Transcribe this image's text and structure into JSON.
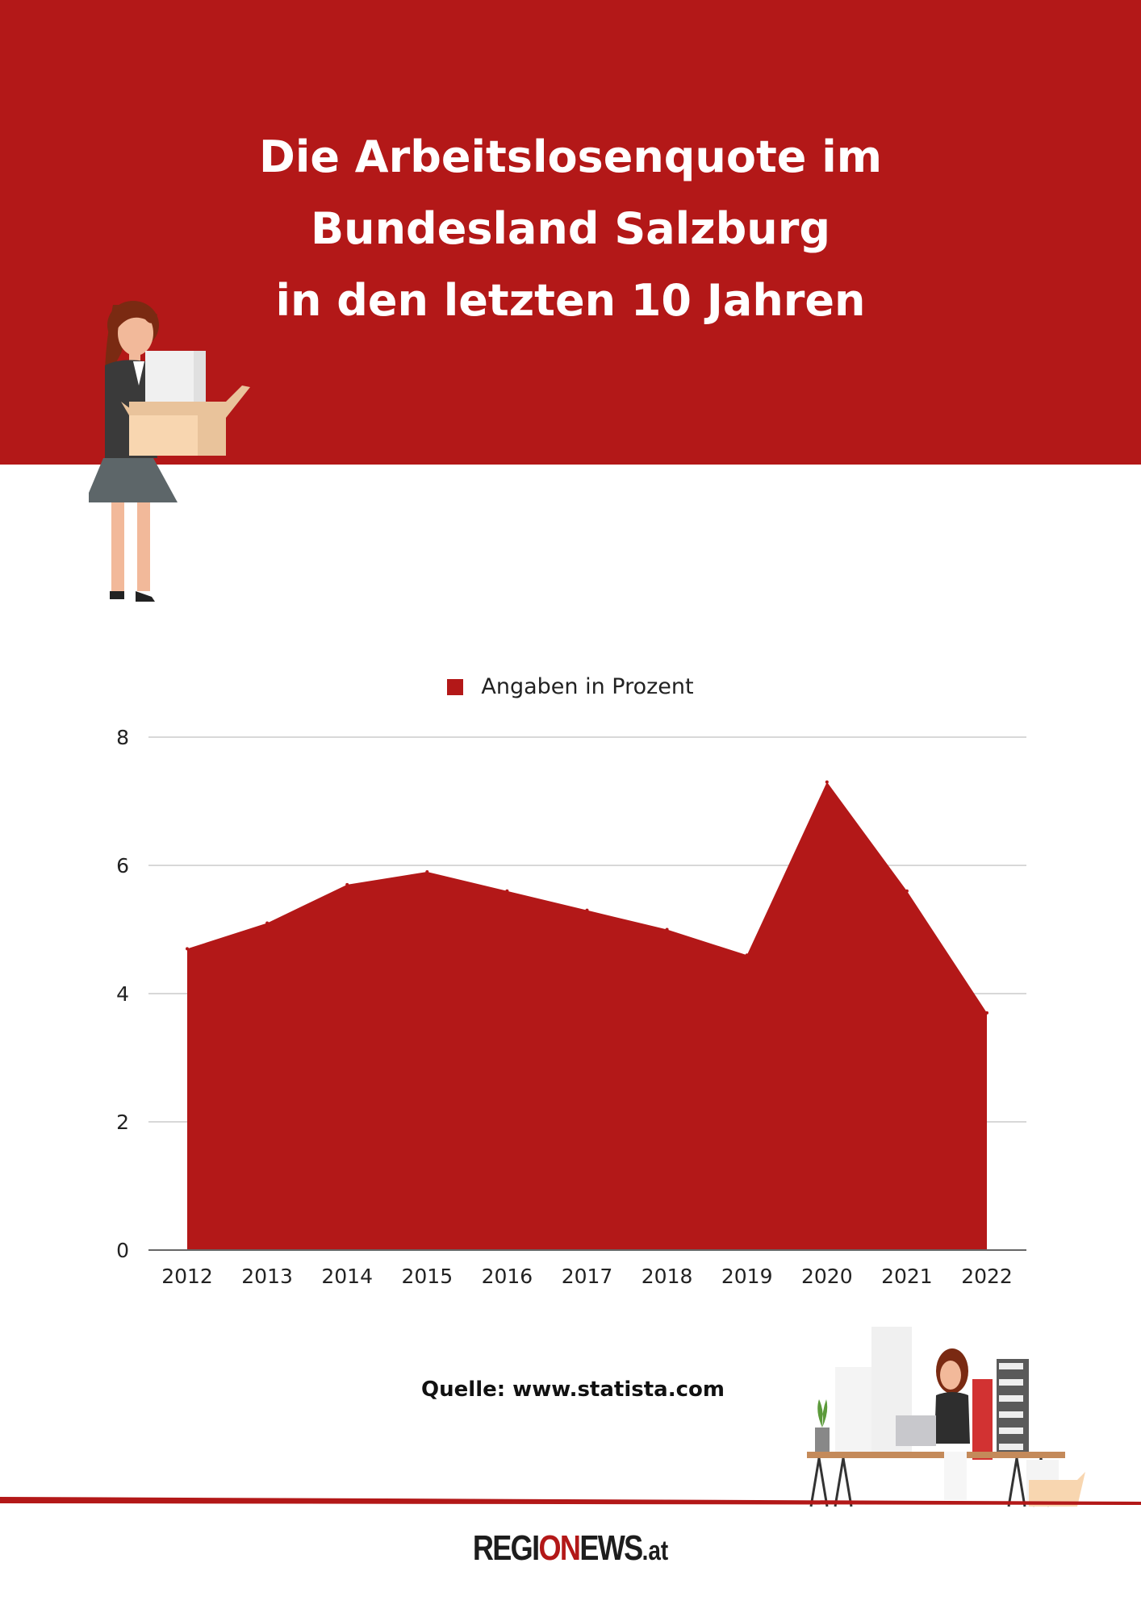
{
  "header": {
    "title_lines": [
      "Die Arbeitslosenquote im",
      "Bundesland Salzburg",
      "in den letzten 10 Jahren"
    ]
  },
  "colors": {
    "brand_red": "#b31818",
    "grid": "#cccccc",
    "text": "#222222"
  },
  "chart_data": {
    "type": "area",
    "title": "Die Arbeitslosenquote im Bundesland Salzburg in den letzten 10 Jahren",
    "categories": [
      "2012",
      "2013",
      "2014",
      "2015",
      "2016",
      "2017",
      "2018",
      "2019",
      "2020",
      "2021",
      "2022"
    ],
    "series": [
      {
        "name": "Angaben in Prozent",
        "values": [
          4.7,
          5.1,
          5.7,
          5.9,
          5.6,
          5.3,
          5.0,
          4.6,
          7.3,
          5.6,
          3.7
        ],
        "color": "#b31818"
      }
    ],
    "xlabel": "",
    "ylabel": "",
    "ylim": [
      0,
      8
    ],
    "yticks": [
      0,
      2,
      4,
      6,
      8
    ],
    "grid": true,
    "legend": "top-center"
  },
  "footer": {
    "source": "Quelle: www.statista.com",
    "logo": {
      "part1": "REGI",
      "part2": "ON",
      "part3": "EWS",
      "part4": ".at"
    }
  }
}
